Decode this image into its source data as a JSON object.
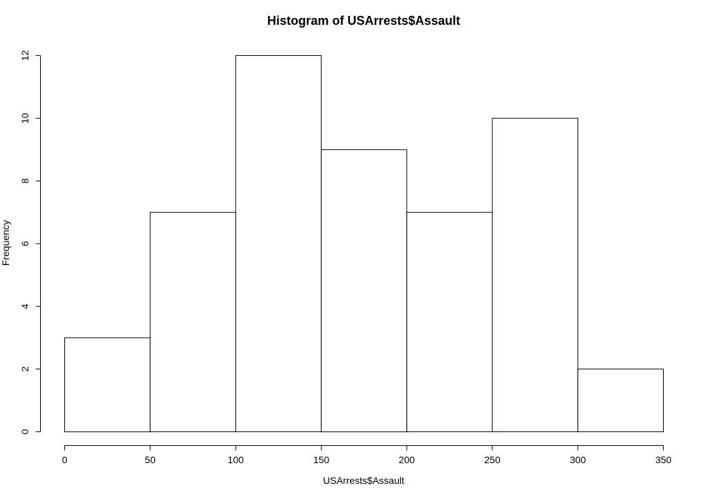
{
  "chart_data": {
    "type": "bar",
    "title": "Histogram of USArrests$Assault",
    "xlabel": "USArrests$Assault",
    "ylabel": "Frequency",
    "bin_edges": [
      0,
      50,
      100,
      150,
      200,
      250,
      300,
      350
    ],
    "values": [
      3,
      7,
      12,
      9,
      7,
      10,
      2
    ],
    "xlim": [
      0,
      350
    ],
    "ylim": [
      0,
      12
    ],
    "x_ticks": [
      "0",
      "50",
      "100",
      "150",
      "200",
      "250",
      "300",
      "350"
    ],
    "y_ticks": [
      "0",
      "2",
      "4",
      "6",
      "8",
      "10",
      "12"
    ],
    "grid": false,
    "bar_fill": "#ffffff",
    "bar_stroke": "#000000"
  }
}
